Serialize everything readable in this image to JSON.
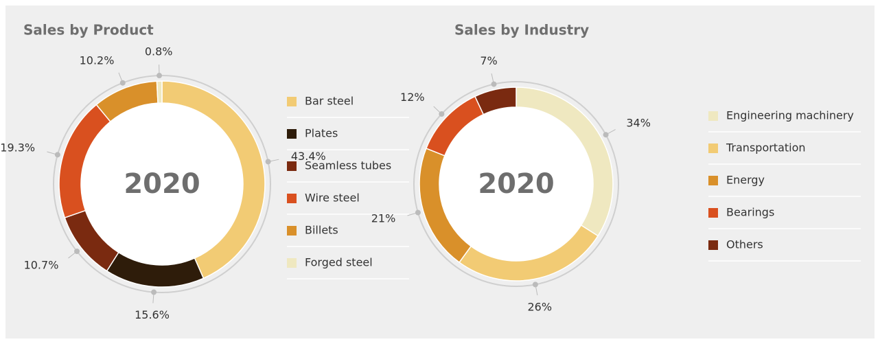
{
  "chart_data": [
    {
      "type": "donut",
      "title": "Sales by Product",
      "center_label": "2020",
      "categories": [
        "Bar steel",
        "Plates",
        "Seamless tubes",
        "Wire steel",
        "Billets",
        "Forged steel"
      ],
      "values": [
        43.4,
        15.6,
        10.7,
        19.3,
        10.2,
        0.8
      ],
      "value_labels": [
        "43.4%",
        "15.6%",
        "10.7%",
        "19.3%",
        "10.2%",
        "0.8%"
      ],
      "colors": [
        "#f2cb74",
        "#2e1c0a",
        "#7a2a10",
        "#d9501f",
        "#d9902a",
        "#efe8c0"
      ]
    },
    {
      "type": "donut",
      "title": "Sales by Industry",
      "center_label": "2020",
      "categories": [
        "Engineering machinery",
        "Transportation",
        "Energy",
        "Bearings",
        "Others"
      ],
      "values": [
        34,
        26,
        21,
        12,
        7
      ],
      "value_labels": [
        "34%",
        "26%",
        "21%",
        "12%",
        "7%"
      ],
      "colors": [
        "#efe8c0",
        "#f2cb74",
        "#d9902a",
        "#d9501f",
        "#7a2a10"
      ]
    }
  ]
}
